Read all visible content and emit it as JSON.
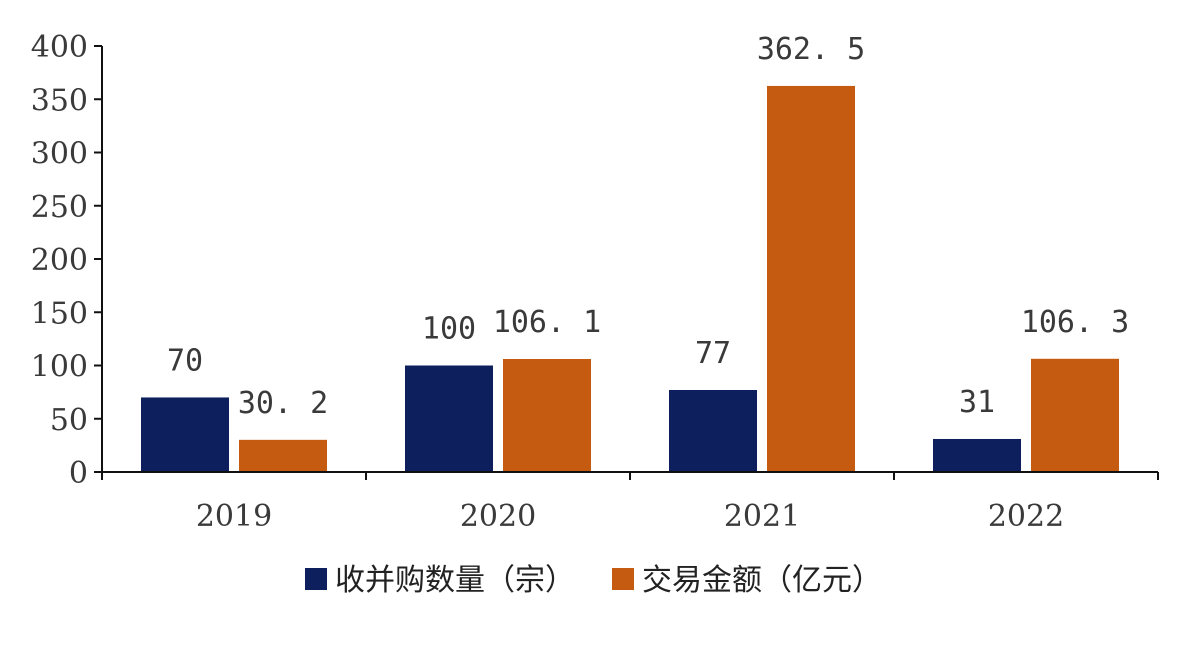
{
  "chart_data": {
    "type": "bar",
    "categories": [
      "2019",
      "2020",
      "2021",
      "2022"
    ],
    "series": [
      {
        "name": "收并购数量（宗）",
        "values": [
          70,
          100,
          77,
          31
        ],
        "labels": [
          "70",
          "100",
          "77",
          "31"
        ],
        "color": "#0d1f5c"
      },
      {
        "name": "交易金额（亿元）",
        "values": [
          30.2,
          106.1,
          362.5,
          106.3
        ],
        "labels": [
          "30. 2",
          "106. 1",
          "362. 5",
          "106. 3"
        ],
        "color": "#c55a11"
      }
    ],
    "ylim": [
      0,
      400
    ],
    "yticks": [
      0,
      50,
      100,
      150,
      200,
      250,
      300,
      350,
      400
    ],
    "legend_position": "bottom",
    "grid": false
  }
}
